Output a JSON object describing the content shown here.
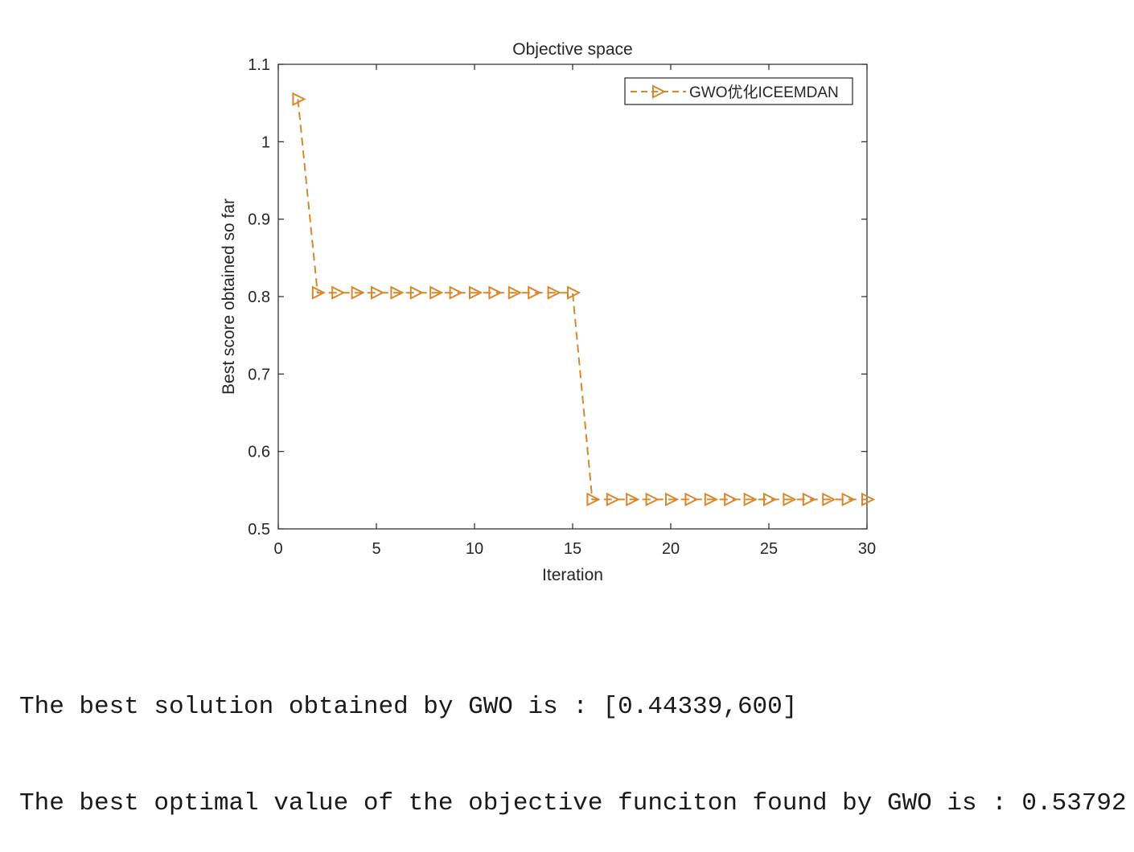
{
  "chart_data": {
    "type": "line",
    "title": "Objective space",
    "xlabel": "Iteration",
    "ylabel": "Best score obtained so far",
    "xlim": [
      0,
      30
    ],
    "ylim": [
      0.5,
      1.1
    ],
    "xticks": [
      0,
      5,
      10,
      15,
      20,
      25,
      30
    ],
    "yticks": [
      0.5,
      0.6,
      0.7,
      0.8,
      0.9,
      1,
      1.1
    ],
    "xtick_labels": [
      "0",
      "5",
      "10",
      "15",
      "20",
      "25",
      "30"
    ],
    "ytick_labels": [
      "0.5",
      "0.6",
      "0.7",
      "0.8",
      "0.9",
      "1",
      "1.1"
    ],
    "legend_position": "top-right",
    "grid": false,
    "series": [
      {
        "name": "GWO优化ICEEMDAN",
        "color": "#D9872A",
        "line_style": "dashed",
        "marker": "triangle-right",
        "x": [
          1,
          2,
          3,
          4,
          5,
          6,
          7,
          8,
          9,
          10,
          11,
          12,
          13,
          14,
          15,
          16,
          17,
          18,
          19,
          20,
          21,
          22,
          23,
          24,
          25,
          26,
          27,
          28,
          29,
          30
        ],
        "values": [
          1.055,
          0.805,
          0.805,
          0.805,
          0.805,
          0.805,
          0.805,
          0.805,
          0.805,
          0.805,
          0.805,
          0.805,
          0.805,
          0.805,
          0.805,
          0.538,
          0.538,
          0.538,
          0.538,
          0.538,
          0.538,
          0.538,
          0.538,
          0.538,
          0.538,
          0.538,
          0.538,
          0.538,
          0.538,
          0.538
        ]
      }
    ]
  },
  "console": {
    "line1": "The best solution obtained by GWO is : [0.44339,600]",
    "line2": "The best optimal value of the objective funciton found by GWO is : 0.53792"
  }
}
